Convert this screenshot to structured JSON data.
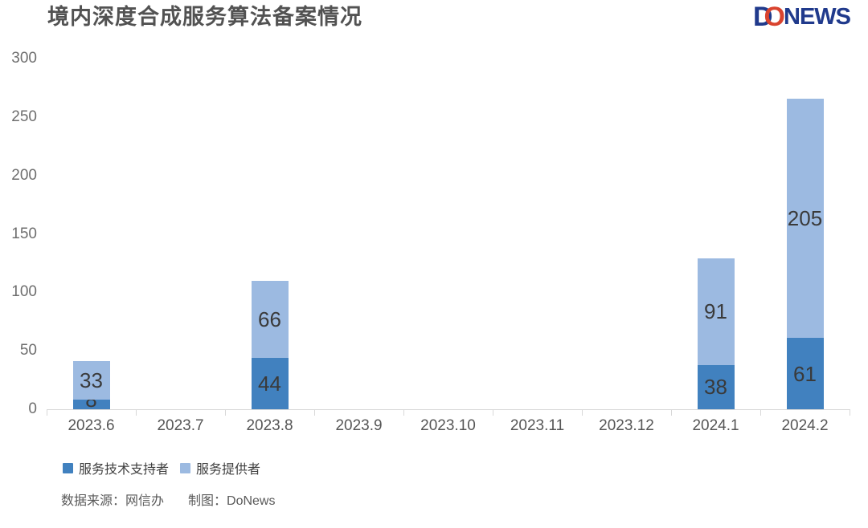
{
  "header": {
    "title": "境内深度合成服务算法备案情况",
    "logo": {
      "d": "D",
      "o": "O",
      "news": "NEWS",
      "navy_color": "#203a8c",
      "red_color": "#d9432e"
    }
  },
  "chart_data": {
    "type": "bar",
    "stacked": true,
    "title": "境内深度合成服务算法备案情况",
    "categories": [
      "2023.6",
      "2023.7",
      "2023.8",
      "2023.9",
      "2023.10",
      "2023.11",
      "2023.12",
      "2024.1",
      "2024.2"
    ],
    "series": [
      {
        "name": "服务技术支持者",
        "color": "#4181bf",
        "values": [
          8,
          0,
          44,
          0,
          0,
          0,
          0,
          38,
          61
        ]
      },
      {
        "name": "服务提供者",
        "color": "#9cbae1",
        "values": [
          33,
          0,
          66,
          0,
          0,
          0,
          0,
          91,
          205
        ]
      }
    ],
    "totals": [
      41,
      0,
      110,
      0,
      0,
      0,
      0,
      129,
      266
    ],
    "xlabel": "",
    "ylabel": "",
    "ylim": [
      0,
      300
    ],
    "yticks": [
      0,
      50,
      100,
      150,
      200,
      250,
      300
    ],
    "grid": false,
    "show_value_labels": true,
    "legend_position": "bottom-left"
  },
  "footer": {
    "source": "数据来源：网信办",
    "credit": "制图：DoNews"
  }
}
